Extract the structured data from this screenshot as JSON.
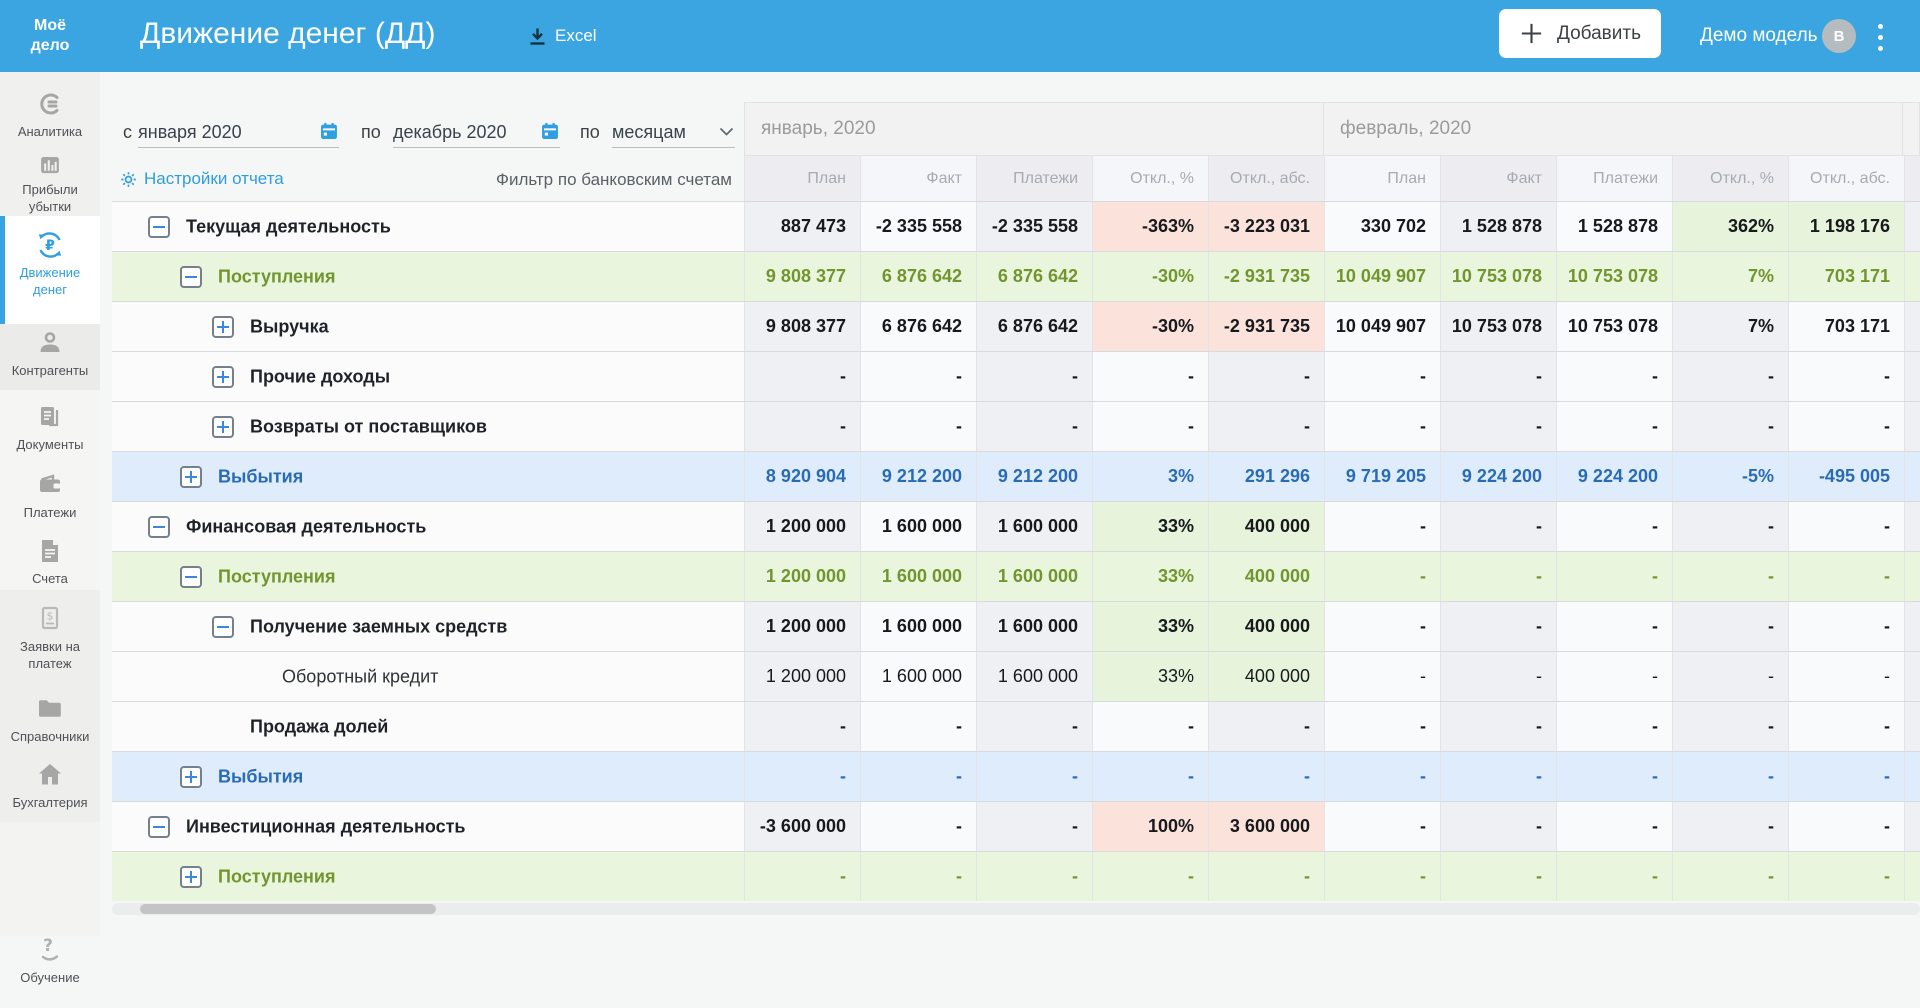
{
  "header": {
    "logo_line1": "Моё",
    "logo_line2": "дело",
    "title": "Движение денег (ДД)",
    "excel_label": "Excel",
    "add_button_label": "Добавить",
    "account_label": "Демо модель",
    "avatar_initial": "В"
  },
  "sidebar": {
    "items": [
      {
        "label": "Аналитика",
        "icon": "analytics",
        "active": false
      },
      {
        "label": "Прибыли убытки",
        "icon": "profit-loss",
        "active": false
      },
      {
        "label": "Движение денег",
        "icon": "cash-flow",
        "active": true
      },
      {
        "label": "Контрагенты",
        "icon": "counterparties",
        "active": false
      },
      {
        "label": "Документы",
        "icon": "documents",
        "active": false
      },
      {
        "label": "Платежи",
        "icon": "payments",
        "active": false
      },
      {
        "label": "Счета",
        "icon": "invoices",
        "active": false
      },
      {
        "label": "Заявки на платеж",
        "icon": "payment-requests",
        "active": false
      },
      {
        "label": "Справочники",
        "icon": "references",
        "active": false
      },
      {
        "label": "Бухгалтерия",
        "icon": "accounting",
        "active": false
      },
      {
        "label": "Обучение",
        "icon": "education",
        "active": false
      }
    ]
  },
  "filters": {
    "from_label": "с",
    "from_value": "января 2020",
    "to_label": "по",
    "to_value": "декабрь 2020",
    "period_label": "по",
    "period_value": "месяцам",
    "settings_label": "Настройки отчета",
    "bank_filter_label": "Фильтр по банковским счетам"
  },
  "table": {
    "months": [
      "январь, 2020",
      "февраль, 2020"
    ],
    "columns": [
      "План",
      "Факт",
      "Платежи",
      "Откл., %",
      "Откл., абс."
    ],
    "rows": [
      {
        "label": "Текущая деятельность",
        "level": 0,
        "toggle": "minus",
        "style": "normal",
        "cells": [
          "887 473",
          "-2 335 558",
          "-2 335 558",
          [
            "-363%",
            "neg"
          ],
          [
            "-3 223 031",
            "neg"
          ],
          "330 702",
          "1 528 878",
          "1 528 878",
          [
            "362%",
            "pos"
          ],
          [
            "1 198 176",
            "pos"
          ]
        ]
      },
      {
        "label": "Поступления",
        "level": 1,
        "toggle": "minus",
        "style": "green",
        "cells": [
          "9 808 377",
          "6 876 642",
          "6 876 642",
          "-30%",
          "-2 931 735",
          "10 049 907",
          "10 753 078",
          "10 753 078",
          "7%",
          "703 171"
        ]
      },
      {
        "label": "Выручка",
        "level": 2,
        "toggle": "plus",
        "style": "normal",
        "cells": [
          "9 808 377",
          "6 876 642",
          "6 876 642",
          [
            "-30%",
            "neg"
          ],
          [
            "-2 931 735",
            "neg"
          ],
          "10 049 907",
          "10 753 078",
          "10 753 078",
          "7%",
          "703 171"
        ]
      },
      {
        "label": "Прочие доходы",
        "level": 2,
        "toggle": "plus",
        "style": "normal",
        "cells": [
          "-",
          "-",
          "-",
          "-",
          "-",
          "-",
          "-",
          "-",
          "-",
          "-"
        ]
      },
      {
        "label": "Возвраты от поставщиков",
        "level": 2,
        "toggle": "plus",
        "style": "normal",
        "cells": [
          "-",
          "-",
          "-",
          "-",
          "-",
          "-",
          "-",
          "-",
          "-",
          "-"
        ]
      },
      {
        "label": "Выбытия",
        "level": 1,
        "toggle": "plus",
        "style": "blue",
        "cells": [
          "8 920 904",
          "9 212 200",
          "9 212 200",
          "3%",
          "291 296",
          "9 719 205",
          "9 224 200",
          "9 224 200",
          "-5%",
          "-495 005"
        ]
      },
      {
        "label": "Финансовая деятельность",
        "level": 0,
        "toggle": "minus",
        "style": "normal",
        "cells": [
          "1 200 000",
          "1 600 000",
          "1 600 000",
          [
            "33%",
            "pos"
          ],
          [
            "400 000",
            "pos"
          ],
          "-",
          "-",
          "-",
          "-",
          "-"
        ]
      },
      {
        "label": "Поступления",
        "level": 1,
        "toggle": "minus",
        "style": "green",
        "cells": [
          "1 200 000",
          "1 600 000",
          "1 600 000",
          "33%",
          "400 000",
          "-",
          "-",
          "-",
          "-",
          "-"
        ]
      },
      {
        "label": "Получение заемных средств",
        "level": 2,
        "toggle": "minus",
        "style": "normal",
        "cells": [
          "1 200 000",
          "1 600 000",
          "1 600 000",
          [
            "33%",
            "pos"
          ],
          [
            "400 000",
            "pos"
          ],
          "-",
          "-",
          "-",
          "-",
          "-"
        ]
      },
      {
        "label": "Оборотный кредит",
        "level": 3,
        "toggle": null,
        "style": "light",
        "cells": [
          "1 200 000",
          "1 600 000",
          "1 600 000",
          [
            "33%",
            "pos"
          ],
          [
            "400 000",
            "pos"
          ],
          "-",
          "-",
          "-",
          "-",
          "-"
        ]
      },
      {
        "label": "Продажа долей",
        "level": 2,
        "toggle": null,
        "style": "normal",
        "cells": [
          "-",
          "-",
          "-",
          "-",
          "-",
          "-",
          "-",
          "-",
          "-",
          "-"
        ]
      },
      {
        "label": "Выбытия",
        "level": 1,
        "toggle": "plus",
        "style": "blue",
        "cells": [
          "-",
          "-",
          "-",
          "-",
          "-",
          "-",
          "-",
          "-",
          "-",
          "-"
        ]
      },
      {
        "label": "Инвестиционная деятельность",
        "level": 0,
        "toggle": "minus",
        "style": "normal",
        "cells": [
          "-3 600 000",
          "-",
          "-",
          [
            "100%",
            "neg"
          ],
          [
            "3 600 000",
            "neg"
          ],
          "-",
          "-",
          "-",
          "-",
          "-"
        ]
      },
      {
        "label": "Поступления",
        "level": 1,
        "toggle": "plus",
        "style": "green",
        "cells": [
          "-",
          "-",
          "-",
          "-",
          "-",
          "-",
          "-",
          "-",
          "-",
          "-"
        ]
      }
    ]
  }
}
